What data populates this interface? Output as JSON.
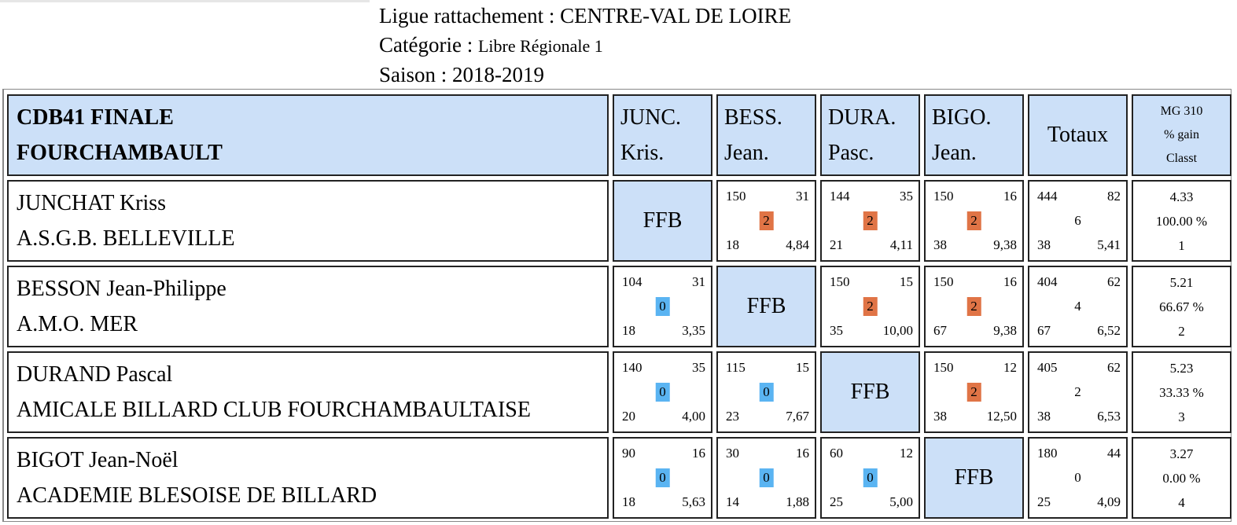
{
  "header": {
    "ligue_label": "Ligue rattachement : ",
    "ligue_value": "CENTRE-VAL DE LOIRE",
    "categorie_label": "Catégorie : ",
    "categorie_value": "Libre Régionale 1",
    "saison_label": "Saison : ",
    "saison_value": "2018-2019"
  },
  "table": {
    "title_line1": "CDB41 FINALE",
    "title_line2": "FOURCHAMBAULT",
    "col_heads": [
      {
        "line1": "JUNC.",
        "line2": "Kris."
      },
      {
        "line1": "BESS.",
        "line2": "Jean."
      },
      {
        "line1": "DURA.",
        "line2": "Pasc."
      },
      {
        "line1": "BIGO.",
        "line2": "Jean."
      }
    ],
    "totaux_label": "Totaux",
    "mg_head": {
      "line1": "MG 310",
      "line2": "% gain",
      "line3": "Classt"
    },
    "ffb_label": "FFB",
    "rows": [
      {
        "name": "JUNCHAT Kriss",
        "club": "A.S.G.B. BELLEVILLE",
        "cells": [
          null,
          {
            "tl": "150",
            "tr": "31",
            "pts": "2",
            "bl": "18",
            "br": "4,84"
          },
          {
            "tl": "144",
            "tr": "35",
            "pts": "2",
            "bl": "21",
            "br": "4,11"
          },
          {
            "tl": "150",
            "tr": "16",
            "pts": "2",
            "bl": "38",
            "br": "9,38"
          }
        ],
        "total": {
          "tl": "444",
          "tr": "82",
          "pts": "6",
          "bl": "38",
          "br": "5,41"
        },
        "mg": {
          "moyenne": "4.33",
          "gain": "100.00 %",
          "classt": "1"
        }
      },
      {
        "name": "BESSON Jean-Philippe",
        "club": "A.M.O. MER",
        "cells": [
          {
            "tl": "104",
            "tr": "31",
            "pts": "0",
            "bl": "18",
            "br": "3,35"
          },
          null,
          {
            "tl": "150",
            "tr": "15",
            "pts": "2",
            "bl": "35",
            "br": "10,00"
          },
          {
            "tl": "150",
            "tr": "16",
            "pts": "2",
            "bl": "67",
            "br": "9,38"
          }
        ],
        "total": {
          "tl": "404",
          "tr": "62",
          "pts": "4",
          "bl": "67",
          "br": "6,52"
        },
        "mg": {
          "moyenne": "5.21",
          "gain": "66.67 %",
          "classt": "2"
        }
      },
      {
        "name": "DURAND Pascal",
        "club": "AMICALE BILLARD CLUB FOURCHAMBAULTAISE",
        "cells": [
          {
            "tl": "140",
            "tr": "35",
            "pts": "0",
            "bl": "20",
            "br": "4,00"
          },
          {
            "tl": "115",
            "tr": "15",
            "pts": "0",
            "bl": "23",
            "br": "7,67"
          },
          null,
          {
            "tl": "150",
            "tr": "12",
            "pts": "2",
            "bl": "38",
            "br": "12,50"
          }
        ],
        "total": {
          "tl": "405",
          "tr": "62",
          "pts": "2",
          "bl": "38",
          "br": "6,53"
        },
        "mg": {
          "moyenne": "5.23",
          "gain": "33.33 %",
          "classt": "3"
        }
      },
      {
        "name": "BIGOT Jean-Noël",
        "club": "ACADEMIE BLESOISE DE BILLARD",
        "cells": [
          {
            "tl": "90",
            "tr": "16",
            "pts": "0",
            "bl": "18",
            "br": "5,63"
          },
          {
            "tl": "30",
            "tr": "16",
            "pts": "0",
            "bl": "14",
            "br": "1,88"
          },
          {
            "tl": "60",
            "tr": "12",
            "pts": "0",
            "bl": "25",
            "br": "5,00"
          },
          null
        ],
        "total": {
          "tl": "180",
          "tr": "44",
          "pts": "0",
          "bl": "25",
          "br": "4,09"
        },
        "mg": {
          "moyenne": "3.27",
          "gain": "0.00 %",
          "classt": "4"
        }
      }
    ]
  },
  "colors": {
    "header_bg": "#cce0f8",
    "points_win": "#e07446",
    "points_lose": "#5ab4f2"
  }
}
